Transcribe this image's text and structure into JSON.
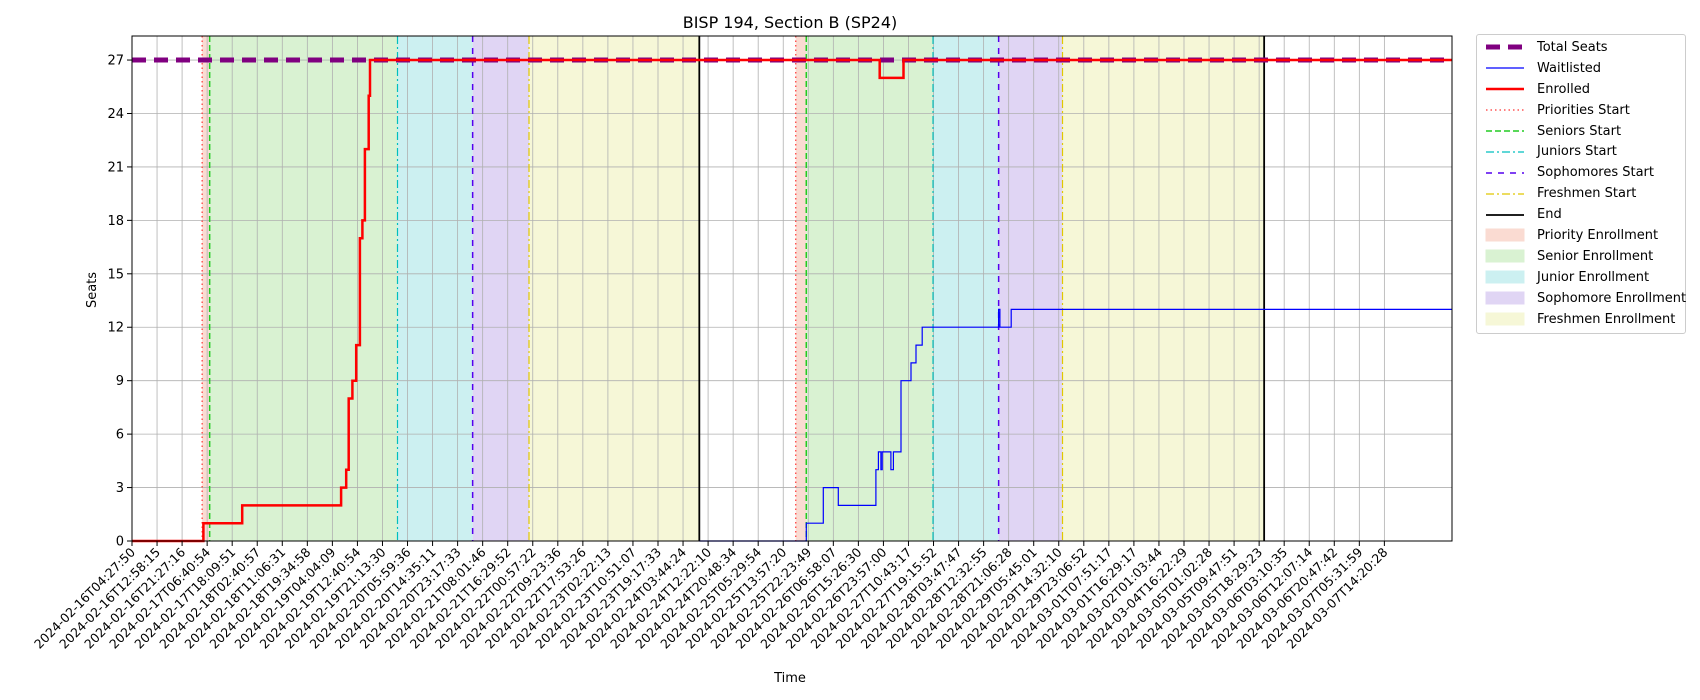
{
  "chart_data": {
    "type": "line",
    "title": "BISP 194, Section B (SP24)",
    "xlabel": "Time",
    "ylabel": "Seats",
    "ylim": [
      0,
      28.35
    ],
    "yticks": [
      0,
      3,
      6,
      9,
      12,
      15,
      18,
      21,
      24,
      27
    ],
    "grid": true,
    "legend_position": "outside-right",
    "xticks": [
      "2024-02-16T04:27:50",
      "2024-02-16T12:58:15",
      "2024-02-16T21:27:16",
      "2024-02-17T06:40:54",
      "2024-02-17T18:09:51",
      "2024-02-18T02:40:57",
      "2024-02-18T11:06:31",
      "2024-02-18T19:34:58",
      "2024-02-19T04:04:09",
      "2024-02-19T12:40:54",
      "2024-02-19T21:13:30",
      "2024-02-20T05:59:36",
      "2024-02-20T14:35:11",
      "2024-02-20T23:17:33",
      "2024-02-21T08:01:46",
      "2024-02-21T16:29:52",
      "2024-02-22T00:57:22",
      "2024-02-22T09:23:36",
      "2024-02-22T17:53:26",
      "2024-02-23T02:22:13",
      "2024-02-23T10:51:07",
      "2024-02-23T19:17:33",
      "2024-02-24T03:44:24",
      "2024-02-24T12:22:10",
      "2024-02-24T20:48:34",
      "2024-02-25T05:29:54",
      "2024-02-25T13:57:20",
      "2024-02-25T22:23:49",
      "2024-02-26T06:58:07",
      "2024-02-26T15:26:30",
      "2024-02-26T23:57:00",
      "2024-02-27T10:43:17",
      "2024-02-27T19:15:52",
      "2024-02-28T03:47:47",
      "2024-02-28T12:32:55",
      "2024-02-28T21:06:28",
      "2024-02-29T05:45:01",
      "2024-02-29T14:32:10",
      "2024-02-29T23:06:52",
      "2024-03-01T07:51:17",
      "2024-03-01T16:29:17",
      "2024-03-02T01:03:44",
      "2024-03-04T16:22:29",
      "2024-03-05T01:02:28",
      "2024-03-05T09:47:51",
      "2024-03-05T18:29:23",
      "2024-03-06T03:10:35",
      "2024-03-06T12:07:14",
      "2024-03-06T20:47:42",
      "2024-03-07T05:31:59",
      "2024-03-07T14:20:28"
    ],
    "x_range_index": [
      0,
      52.7
    ],
    "shaded_regions": [
      {
        "name": "Priority Enrollment",
        "start": 2.8,
        "end": 3.1,
        "color": "#fadbd2"
      },
      {
        "name": "Senior Enrollment",
        "start": 3.1,
        "end": 10.6,
        "color": "#d9f2d2"
      },
      {
        "name": "Junior Enrollment",
        "start": 10.6,
        "end": 13.6,
        "color": "#ccf0f1"
      },
      {
        "name": "Sophomore Enrollment",
        "start": 13.6,
        "end": 15.85,
        "color": "#e0d5f4"
      },
      {
        "name": "Freshmen Enrollment",
        "start": 15.85,
        "end": 22.65,
        "color": "#f6f7d7"
      },
      {
        "name": "Priority Enrollment",
        "start": 26.5,
        "end": 26.92,
        "color": "#fadbd2"
      },
      {
        "name": "Senior Enrollment",
        "start": 26.92,
        "end": 31.98,
        "color": "#d9f2d2"
      },
      {
        "name": "Junior Enrollment",
        "start": 31.98,
        "end": 34.6,
        "color": "#ccf0f1"
      },
      {
        "name": "Sophomore Enrollment",
        "start": 34.6,
        "end": 37.15,
        "color": "#e0d5f4"
      },
      {
        "name": "Freshmen Enrollment",
        "start": 37.15,
        "end": 45.2,
        "color": "#f6f7d7"
      }
    ],
    "vlines": [
      {
        "name": "Priorities Start",
        "x": 2.8,
        "color": "#ff3333",
        "dash": "1.5,3",
        "width": 1.2
      },
      {
        "name": "Seniors Start",
        "x": 3.1,
        "color": "#22cc22",
        "dash": "6,3",
        "width": 1.5
      },
      {
        "name": "Juniors Start",
        "x": 10.6,
        "color": "#00bfbf",
        "dash": "8,3,2,3",
        "width": 1.2
      },
      {
        "name": "Sophomores Start",
        "x": 13.6,
        "color": "#5500ee",
        "dash": "6,6",
        "width": 1.5
      },
      {
        "name": "Freshmen Start",
        "x": 15.85,
        "color": "#e0c800",
        "dash": "8,3,2,3",
        "width": 1.2
      },
      {
        "name": "End",
        "x": 22.65,
        "color": "#000000",
        "dash": "",
        "width": 1.8
      },
      {
        "name": "Priorities Start",
        "x": 26.5,
        "color": "#ff3333",
        "dash": "1.5,3",
        "width": 1.2
      },
      {
        "name": "Seniors Start",
        "x": 26.92,
        "color": "#22cc22",
        "dash": "6,3",
        "width": 1.5
      },
      {
        "name": "Juniors Start",
        "x": 31.98,
        "color": "#00bfbf",
        "dash": "8,3,2,3",
        "width": 1.2
      },
      {
        "name": "Sophomores Start",
        "x": 34.6,
        "color": "#5500ee",
        "dash": "6,6",
        "width": 1.5
      },
      {
        "name": "Freshmen Start",
        "x": 37.15,
        "color": "#e0c800",
        "dash": "8,3,2,3",
        "width": 1.2
      },
      {
        "name": "End",
        "x": 45.2,
        "color": "#000000",
        "dash": "",
        "width": 1.8
      }
    ],
    "series": [
      {
        "name": "Total Seats",
        "color": "#800080",
        "width": 5,
        "dash": "14,8",
        "x": [
          0,
          52.7
        ],
        "y": [
          27,
          27
        ]
      },
      {
        "name": "Waitlisted",
        "color": "#0000ff",
        "width": 1.2,
        "dash": "",
        "x": [
          22.65,
          26.92,
          26.92,
          27.0,
          27.0,
          27.6,
          27.6,
          28.2,
          28.2,
          29.7,
          29.7,
          29.8,
          29.8,
          29.9,
          29.9,
          29.95,
          29.95,
          30.3,
          30.3,
          30.4,
          30.4,
          30.7,
          30.7,
          31.1,
          31.1,
          31.3,
          31.3,
          31.4,
          31.4,
          31.55,
          31.55,
          32.2,
          32.2,
          32.45,
          32.45,
          34.6,
          34.6,
          34.65,
          34.65,
          35.1,
          35.1,
          52.7
        ],
        "y": [
          0,
          0,
          1,
          1,
          1,
          1,
          3,
          3,
          2,
          2,
          4,
          4,
          5,
          5,
          4,
          4,
          5,
          5,
          4,
          4,
          5,
          5,
          9,
          9,
          10,
          10,
          11,
          11,
          11,
          11,
          12,
          12,
          12,
          12,
          12,
          12,
          13,
          13,
          12,
          12,
          13,
          13
        ]
      },
      {
        "name": "Enrolled",
        "color": "#ff0000",
        "width": 2.5,
        "dash": "",
        "x": [
          0,
          2.85,
          2.85,
          4.4,
          4.4,
          8.35,
          8.35,
          8.55,
          8.55,
          8.65,
          8.65,
          8.8,
          8.8,
          8.95,
          8.95,
          9.1,
          9.1,
          9.2,
          9.2,
          9.3,
          9.3,
          9.45,
          9.45,
          9.5,
          9.5,
          26.9,
          26.9,
          29.85,
          29.85,
          30.8,
          30.8,
          52.7
        ],
        "y": [
          0,
          0,
          1,
          1,
          2,
          2,
          3,
          3,
          4,
          4,
          8,
          8,
          9,
          9,
          11,
          11,
          17,
          17,
          18,
          18,
          22,
          22,
          25,
          25,
          27,
          27,
          27,
          27,
          26,
          26,
          27,
          27
        ]
      }
    ]
  },
  "legend": {
    "items": [
      {
        "label": "Total Seats",
        "kind": "line",
        "color": "#800080",
        "width": 5,
        "dash": "14,8"
      },
      {
        "label": "Waitlisted",
        "kind": "line",
        "color": "#0000ff",
        "width": 1.2,
        "dash": ""
      },
      {
        "label": "Enrolled",
        "kind": "line",
        "color": "#ff0000",
        "width": 2.5,
        "dash": ""
      },
      {
        "label": "Priorities Start",
        "kind": "line",
        "color": "#ff3333",
        "width": 1.2,
        "dash": "1.5,3"
      },
      {
        "label": "Seniors Start",
        "kind": "line",
        "color": "#22cc22",
        "width": 1.5,
        "dash": "6,3"
      },
      {
        "label": "Juniors Start",
        "kind": "line",
        "color": "#00bfbf",
        "width": 1.2,
        "dash": "8,3,2,3"
      },
      {
        "label": "Sophomores Start",
        "kind": "line",
        "color": "#5500ee",
        "width": 1.5,
        "dash": "6,6"
      },
      {
        "label": "Freshmen Start",
        "kind": "line",
        "color": "#e0c800",
        "width": 1.2,
        "dash": "8,3,2,3"
      },
      {
        "label": "End",
        "kind": "line",
        "color": "#000000",
        "width": 1.8,
        "dash": ""
      },
      {
        "label": "Priority Enrollment",
        "kind": "patch",
        "color": "#fadbd2"
      },
      {
        "label": "Senior Enrollment",
        "kind": "patch",
        "color": "#d9f2d2"
      },
      {
        "label": "Junior Enrollment",
        "kind": "patch",
        "color": "#ccf0f1"
      },
      {
        "label": "Sophomore Enrollment",
        "kind": "patch",
        "color": "#e0d5f4"
      },
      {
        "label": "Freshmen Enrollment",
        "kind": "patch",
        "color": "#f6f7d7"
      }
    ]
  }
}
